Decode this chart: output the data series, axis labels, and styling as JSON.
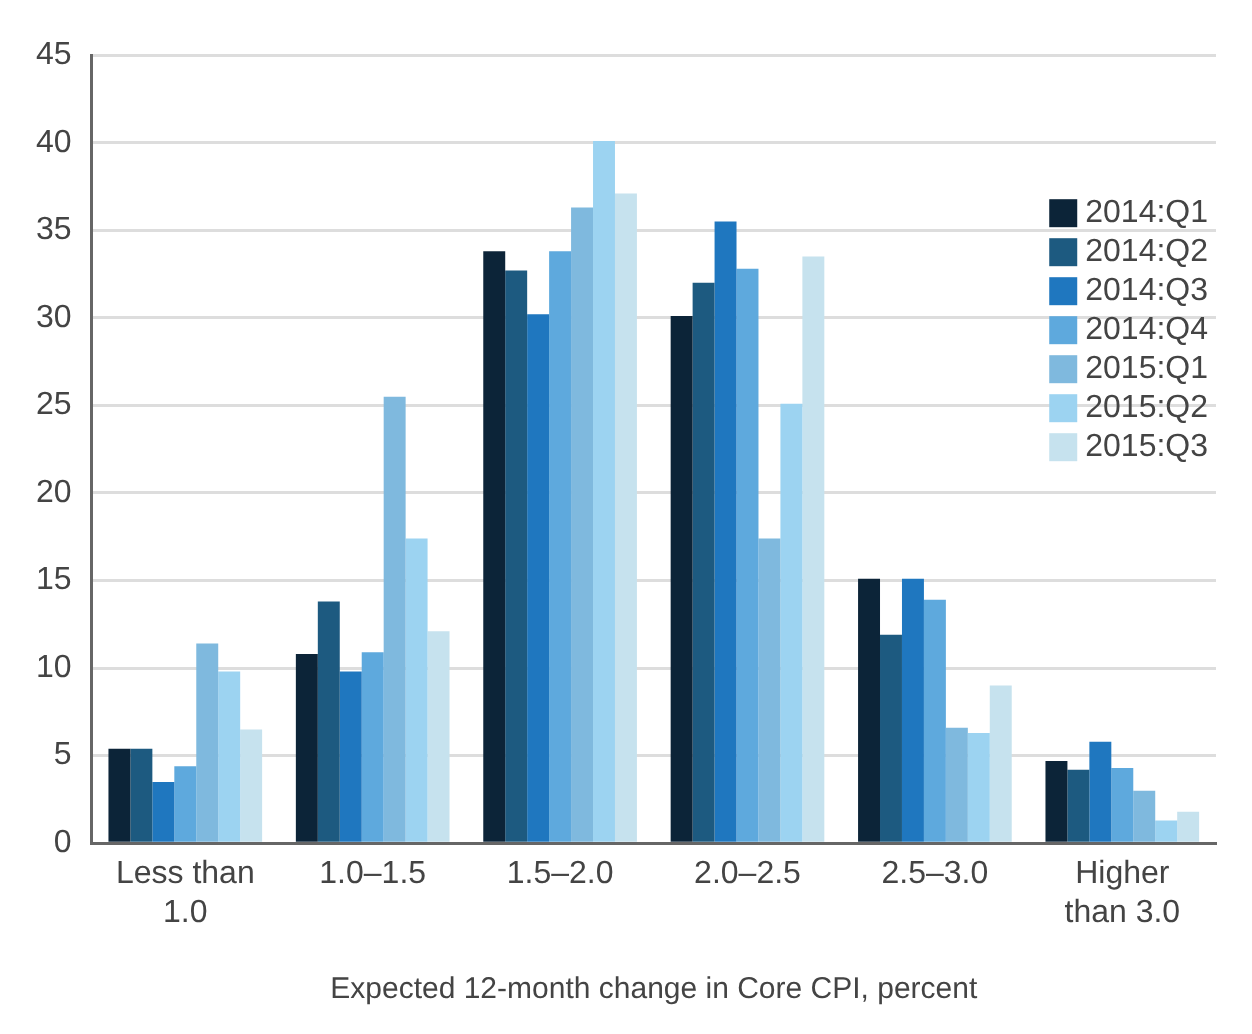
{
  "chart_data": {
    "type": "bar",
    "xlabel": "Expected 12-month change in Core CPI, percent",
    "categories": [
      "Less than 1.0",
      "1.0–1.5",
      "1.5–2.0",
      "2.0–2.5",
      "2.5–3.0",
      "Higher than 3.0"
    ],
    "series": [
      {
        "name": "2014:Q1",
        "color": "#0c2438",
        "values": [
          5.4,
          10.8,
          33.8,
          30.1,
          15.1,
          4.7
        ]
      },
      {
        "name": "2014:Q2",
        "color": "#1d5a80",
        "values": [
          5.4,
          13.8,
          32.7,
          32.0,
          11.9,
          4.2
        ]
      },
      {
        "name": "2014:Q3",
        "color": "#1f77bf",
        "values": [
          3.5,
          9.8,
          30.2,
          35.5,
          15.1,
          5.8
        ]
      },
      {
        "name": "2014:Q4",
        "color": "#5ea9dd",
        "values": [
          4.4,
          10.9,
          33.8,
          32.8,
          13.9,
          4.3
        ]
      },
      {
        "name": "2015:Q1",
        "color": "#7fb9de",
        "values": [
          11.4,
          25.5,
          36.3,
          17.4,
          6.6,
          3.0
        ]
      },
      {
        "name": "2015:Q2",
        "color": "#9cd3f1",
        "values": [
          9.8,
          17.4,
          40.1,
          25.1,
          6.3,
          1.3
        ]
      },
      {
        "name": "2015:Q3",
        "color": "#c6e2ee",
        "values": [
          6.5,
          12.1,
          37.1,
          33.5,
          9.0,
          1.8
        ]
      }
    ],
    "ylim": [
      0,
      45
    ],
    "yticks": [
      0,
      5,
      10,
      15,
      20,
      25,
      30,
      35,
      40,
      45
    ],
    "grid": "y",
    "legend": "top right"
  }
}
